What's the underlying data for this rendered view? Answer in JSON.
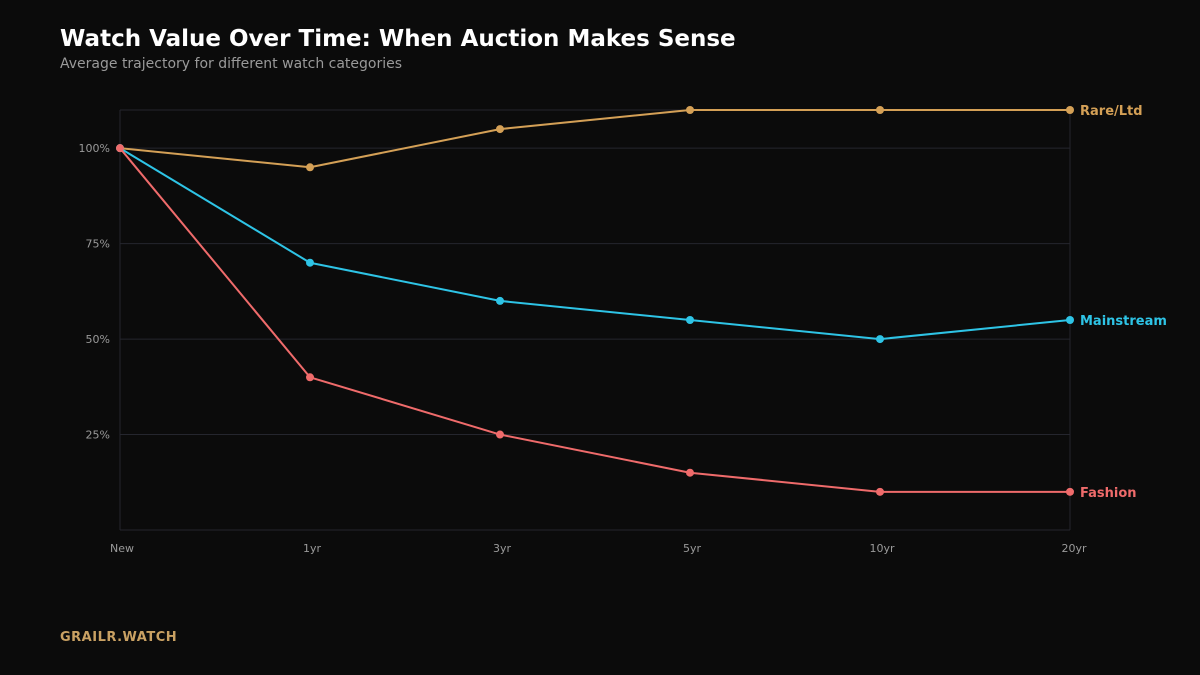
{
  "header": {
    "title": "Watch Value Over Time: When Auction Makes Sense",
    "subtitle": "Average trajectory for different watch categories"
  },
  "footer": {
    "brand": "GRAILR.WATCH",
    "brand_color": "#c9a163"
  },
  "chart_data": {
    "type": "line",
    "title": "Watch Value Over Time: When Auction Makes Sense",
    "subtitle": "Average trajectory for different watch categories",
    "categories": [
      "New",
      "1yr",
      "3yr",
      "5yr",
      "10yr",
      "20yr"
    ],
    "y_ticks": [
      100,
      75,
      50,
      25
    ],
    "y_tick_labels": [
      "100%",
      "75%",
      "50%",
      "25%"
    ],
    "ylim": [
      0,
      110
    ],
    "y_unit": "%",
    "grid": true,
    "legend": "end-of-line labels",
    "series": [
      {
        "name": "Rare/Ltd",
        "color": "#d4a056",
        "values": [
          100,
          95,
          105,
          110,
          110,
          110
        ]
      },
      {
        "name": "Mainstream",
        "color": "#2ec4e6",
        "values": [
          100,
          70,
          60,
          55,
          50,
          55
        ]
      },
      {
        "name": "Fashion",
        "color": "#ef6b6b",
        "values": [
          100,
          40,
          25,
          15,
          10,
          10
        ]
      }
    ],
    "colors": {
      "background": "#0b0b0b",
      "grid": "#25262e",
      "tick_label": "#9a9a9a"
    }
  }
}
